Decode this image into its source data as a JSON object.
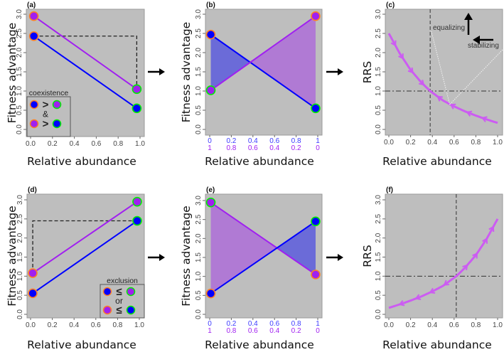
{
  "figure": {
    "panel_labels": [
      "(a)",
      "(b)",
      "(c)",
      "(d)",
      "(e)",
      "(f)"
    ],
    "xlabel": "Relative abundance",
    "ylabel_fitness": "Fitness advantage",
    "ylabel_rrs": "RRS",
    "y_ticks": [
      "0.0",
      "0.5",
      "1.0",
      "1.5",
      "2.0",
      "2.5",
      "3.0"
    ],
    "x_ticks": [
      "0.0",
      "0.2",
      "0.4",
      "0.6",
      "0.8",
      "1.0"
    ],
    "x_ticks_blue": [
      "0",
      "0.2",
      "0.4",
      "0.6",
      "0.8",
      "1"
    ],
    "x_ticks_purple": [
      "1",
      "0.8",
      "0.6",
      "0.4",
      "0.2",
      "0"
    ],
    "colors": {
      "background": "#bebebe",
      "purple": "#a020f0",
      "blue": "#0000ff",
      "orange_outline": "#ff7f24",
      "green_outline": "#00ee00",
      "curve": "#cc5cf2",
      "fill_blue": "#6b6bd8",
      "fill_purple": "#b07ad4"
    }
  },
  "chart_data": [
    {
      "panel": "(a)",
      "type": "line",
      "xlabel": "Relative abundance",
      "ylabel": "Fitness advantage",
      "xlim": [
        0,
        1
      ],
      "ylim": [
        0,
        3
      ],
      "series": [
        {
          "name": "purple",
          "x": [
            0.03,
            0.97
          ],
          "y": [
            2.95,
            1.05
          ],
          "outlines": [
            "orange",
            "green"
          ]
        },
        {
          "name": "blue",
          "x": [
            0.03,
            0.97
          ],
          "y": [
            2.43,
            0.55
          ],
          "outlines": [
            "orange",
            "green"
          ]
        }
      ],
      "dashed": {
        "x": [
          0.03,
          0.97,
          0.97
        ],
        "y": [
          2.43,
          2.43,
          1.05
        ]
      },
      "legend": {
        "title": "coexistence",
        "placement": "bottom-left",
        "rel1": ">",
        "joiner": "&",
        "rel2": ">"
      }
    },
    {
      "panel": "(b)",
      "type": "area",
      "xlabel": "Relative abundance",
      "ylabel": "Fitness advantage",
      "xlim": [
        0,
        1
      ],
      "ylim": [
        0,
        3
      ],
      "series": [
        {
          "name": "blue",
          "x": [
            0.01,
            0.98
          ],
          "y": [
            2.47,
            0.55
          ],
          "outlines": [
            "orange",
            "green"
          ]
        },
        {
          "name": "purple",
          "x": [
            0.01,
            0.98
          ],
          "y": [
            1.02,
            2.95
          ],
          "outlines": [
            "green",
            "orange"
          ]
        }
      ],
      "crossing": {
        "x": 0.37,
        "y": 1.75
      }
    },
    {
      "panel": "(c)",
      "type": "line",
      "xlabel": "Relative abundance",
      "ylabel": "RRS",
      "xlim": [
        0,
        1
      ],
      "ylim": [
        0,
        3
      ],
      "x": [
        0,
        0.1,
        0.2,
        0.3,
        0.38,
        0.5,
        0.6,
        0.7,
        0.8,
        0.9,
        1.0
      ],
      "y": [
        2.5,
        1.98,
        1.55,
        1.22,
        1.0,
        0.75,
        0.6,
        0.47,
        0.36,
        0.26,
        0.17
      ],
      "arrows_right_at": [
        0.06,
        0.13,
        0.22,
        0.32
      ],
      "arrows_left_at": [
        0.45,
        0.57,
        0.72,
        0.86
      ],
      "vline": 0.38,
      "hline": 1.0,
      "annotations": {
        "equalizing": "equalizing",
        "stabilizing": "stabilizing",
        "target": {
          "x": 0.56,
          "y": 0.65
        }
      }
    },
    {
      "panel": "(d)",
      "type": "line",
      "xlabel": "Relative abundance",
      "ylabel": "Fitness advantage",
      "xlim": [
        0,
        1
      ],
      "ylim": [
        0,
        3
      ],
      "series": [
        {
          "name": "purple",
          "x": [
            0.02,
            0.98
          ],
          "y": [
            1.08,
            2.95
          ],
          "outlines": [
            "orange",
            "green"
          ]
        },
        {
          "name": "blue",
          "x": [
            0.02,
            0.98
          ],
          "y": [
            0.55,
            2.45
          ],
          "outlines": [
            "orange",
            "green"
          ]
        }
      ],
      "dashed": {
        "x": [
          0.02,
          0.02,
          0.98
        ],
        "y": [
          1.08,
          2.45,
          2.45
        ]
      },
      "legend": {
        "title": "exclusion",
        "placement": "bottom-right",
        "rel1": "≤",
        "joiner": "or",
        "rel2": "≤"
      }
    },
    {
      "panel": "(e)",
      "type": "area",
      "xlabel": "Relative abundance",
      "ylabel": "Fitness advantage",
      "xlim": [
        0,
        1
      ],
      "ylim": [
        0,
        3
      ],
      "series": [
        {
          "name": "purple",
          "x": [
            0.01,
            0.98
          ],
          "y": [
            2.95,
            1.05
          ],
          "outlines": [
            "green",
            "orange"
          ]
        },
        {
          "name": "blue",
          "x": [
            0.01,
            0.98
          ],
          "y": [
            0.55,
            2.45
          ],
          "outlines": [
            "orange",
            "green"
          ]
        }
      ],
      "crossing": {
        "x": 0.62,
        "y": 1.75
      }
    },
    {
      "panel": "(f)",
      "type": "line",
      "xlabel": "Relative abundance",
      "ylabel": "RRS",
      "xlim": [
        0,
        1
      ],
      "ylim": [
        0,
        3
      ],
      "x": [
        0,
        0.1,
        0.2,
        0.3,
        0.4,
        0.5,
        0.62,
        0.7,
        0.8,
        0.9,
        1.0
      ],
      "y": [
        0.17,
        0.26,
        0.36,
        0.47,
        0.6,
        0.75,
        1.0,
        1.22,
        1.55,
        1.98,
        2.5
      ],
      "arrows_left_at": [
        0.1,
        0.25,
        0.38,
        0.51
      ],
      "arrows_right_at": [
        0.72,
        0.81,
        0.9,
        0.96
      ],
      "vline": 0.62,
      "hline": 1.0
    }
  ]
}
